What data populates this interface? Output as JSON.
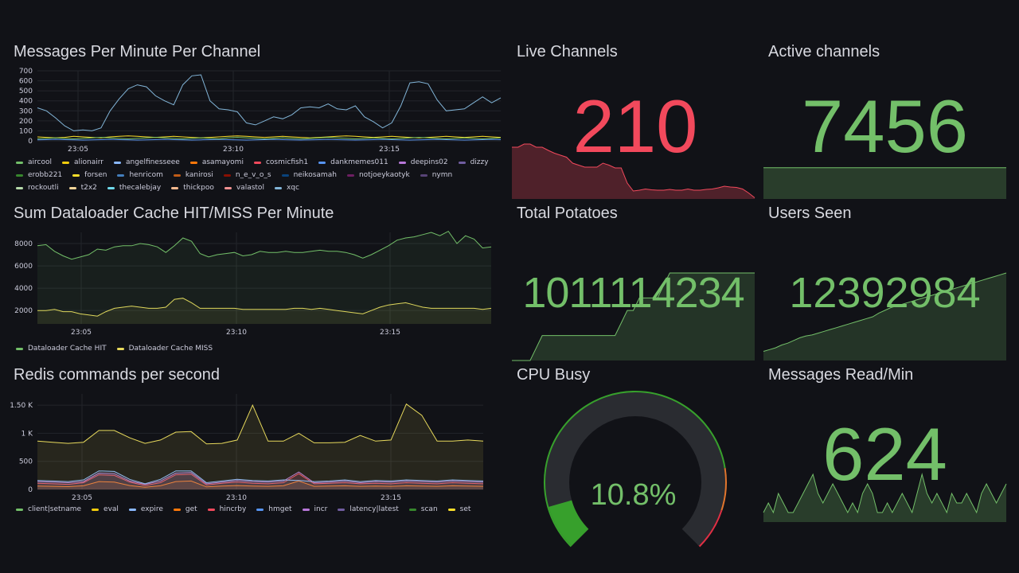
{
  "colors": {
    "background": "#111217",
    "green": "#73bf69",
    "red": "#f2495c",
    "yellow": "#e8da5c",
    "blue": "#8ab8ff",
    "grid": "#23252b"
  },
  "panels": {
    "messages": {
      "title": "Messages Per Minute Per Channel",
      "legend": [
        {
          "name": "aircool",
          "color": "#73bf69"
        },
        {
          "name": "alionairr",
          "color": "#f2cc0c"
        },
        {
          "name": "angelfinesseee",
          "color": "#8ab8ff"
        },
        {
          "name": "asamayomi",
          "color": "#ff780a"
        },
        {
          "name": "cosmicfish1",
          "color": "#f2495c"
        },
        {
          "name": "dankmemes011",
          "color": "#5794f2"
        },
        {
          "name": "deepins02",
          "color": "#b877d9"
        },
        {
          "name": "dizzy",
          "color": "#705da0"
        },
        {
          "name": "erobb221",
          "color": "#37872d"
        },
        {
          "name": "forsen",
          "color": "#fade2a"
        },
        {
          "name": "henricom",
          "color": "#447ebc"
        },
        {
          "name": "kanirosi",
          "color": "#c15c17"
        },
        {
          "name": "n_e_v_o_s",
          "color": "#890f02"
        },
        {
          "name": "neikosamah",
          "color": "#0a437c"
        },
        {
          "name": "notjoeykaotyk",
          "color": "#6d1f62"
        },
        {
          "name": "nymn",
          "color": "#584477"
        },
        {
          "name": "rockoutli",
          "color": "#b7dbab"
        },
        {
          "name": "t2x2",
          "color": "#f4d598"
        },
        {
          "name": "thecalebjay",
          "color": "#70dbed"
        },
        {
          "name": "thickpoo",
          "color": "#f9ba8f"
        },
        {
          "name": "valastol",
          "color": "#f29191"
        },
        {
          "name": "xqc",
          "color": "#82b5d8"
        }
      ]
    },
    "dataloader": {
      "title": "Sum Dataloader Cache HIT/MISS Per Minute",
      "legend": [
        {
          "name": "Dataloader Cache HIT",
          "color": "#73bf69"
        },
        {
          "name": "Dataloader Cache MISS",
          "color": "#e8da5c"
        }
      ]
    },
    "redis": {
      "title": "Redis commands per second",
      "legend": [
        {
          "name": "client|setname",
          "color": "#73bf69"
        },
        {
          "name": "eval",
          "color": "#f2cc0c"
        },
        {
          "name": "expire",
          "color": "#8ab8ff"
        },
        {
          "name": "get",
          "color": "#ff780a"
        },
        {
          "name": "hincrby",
          "color": "#f2495c"
        },
        {
          "name": "hmget",
          "color": "#5794f2"
        },
        {
          "name": "incr",
          "color": "#b877d9"
        },
        {
          "name": "latency|latest",
          "color": "#705da0"
        },
        {
          "name": "scan",
          "color": "#37872d"
        },
        {
          "name": "set",
          "color": "#fade2a"
        }
      ]
    },
    "live_channels": {
      "title": "Live Channels",
      "value": "210",
      "color": "#f2495c"
    },
    "active_channels": {
      "title": "Active channels",
      "value": "7456",
      "color": "#73bf69"
    },
    "total_potatoes": {
      "title": "Total Potatoes",
      "value": "1011114234",
      "color": "#73bf69"
    },
    "users_seen": {
      "title": "Users Seen",
      "value": "12392984",
      "color": "#73bf69"
    },
    "cpu_busy": {
      "title": "CPU Busy",
      "value": "10.8%",
      "percent": 10.8,
      "color": "#73bf69"
    },
    "messages_read": {
      "title": "Messages Read/Min",
      "value": "624",
      "color": "#73bf69"
    }
  },
  "chart_data": [
    {
      "type": "line",
      "title": "Messages Per Minute Per Channel",
      "xticks": [
        "23:05",
        "23:10",
        "23:15"
      ],
      "yticks": [
        "700",
        "600",
        "500",
        "400",
        "300",
        "200",
        "100",
        "0"
      ],
      "ylim": [
        0,
        700
      ],
      "series": [
        {
          "name": "xqc",
          "color": "#82b5d8",
          "values": [
            330,
            300,
            230,
            150,
            100,
            110,
            100,
            130,
            300,
            420,
            520,
            560,
            540,
            450,
            400,
            360,
            560,
            650,
            660,
            400,
            320,
            310,
            290,
            180,
            160,
            200,
            240,
            220,
            260,
            330,
            340,
            330,
            370,
            320,
            310,
            350,
            240,
            190,
            130,
            180,
            350,
            580,
            590,
            570,
            410,
            300,
            310,
            320,
            380,
            440,
            380,
            430
          ]
        },
        {
          "name": "aircool",
          "color": "#73bf69",
          "values": [
            20,
            25,
            30,
            25,
            20,
            25,
            30,
            35,
            30,
            25,
            20,
            25,
            30,
            35,
            30,
            25,
            20,
            25,
            30,
            25,
            20,
            30,
            35,
            30,
            25,
            20,
            25,
            30,
            25,
            20,
            25,
            30,
            35,
            30,
            25,
            20,
            25,
            30,
            25,
            20,
            25,
            30,
            35,
            30,
            25,
            20,
            25,
            30,
            25,
            20,
            25,
            30
          ]
        },
        {
          "name": "forsen",
          "color": "#fade2a",
          "values": [
            40,
            35,
            30,
            35,
            45,
            40,
            35,
            30,
            40,
            45,
            50,
            45,
            40,
            35,
            40,
            45,
            40,
            35,
            30,
            35,
            40,
            45,
            50,
            45,
            40,
            35,
            40,
            45,
            40,
            35,
            30,
            35,
            40,
            45,
            50,
            45,
            40,
            35,
            40,
            45,
            40,
            35,
            30,
            35,
            40,
            45,
            40,
            35,
            40,
            45,
            40,
            35
          ]
        },
        {
          "name": "dankmemes011",
          "color": "#5794f2",
          "values": [
            10,
            12,
            15,
            12,
            10,
            8,
            10,
            12,
            15,
            12,
            10,
            8,
            10,
            12,
            15,
            12,
            10,
            8,
            10,
            12,
            15,
            12,
            10,
            8,
            10,
            12,
            15,
            12,
            10,
            8,
            10,
            12,
            15,
            12,
            10,
            8,
            10,
            12,
            15,
            12,
            10,
            8,
            10,
            12,
            15,
            12,
            10,
            8,
            10,
            12,
            15,
            12
          ]
        }
      ]
    },
    {
      "type": "area",
      "title": "Sum Dataloader Cache HIT/MISS Per Minute",
      "xticks": [
        "23:05",
        "23:10",
        "23:15"
      ],
      "yticks": [
        "8000",
        "6000",
        "4000",
        "2000"
      ],
      "ylim": [
        800,
        9000
      ],
      "series": [
        {
          "name": "Dataloader Cache HIT",
          "color": "#73bf69",
          "values": [
            7800,
            7900,
            7300,
            6900,
            6600,
            6800,
            7000,
            7500,
            7400,
            7700,
            7800,
            7800,
            8000,
            7900,
            7700,
            7200,
            7800,
            8500,
            8200,
            7100,
            6800,
            7000,
            7100,
            7200,
            6900,
            7000,
            7300,
            7200,
            7200,
            7300,
            7200,
            7200,
            7300,
            7400,
            7300,
            7300,
            7200,
            7000,
            6700,
            7000,
            7400,
            7800,
            8300,
            8500,
            8600,
            8800,
            9000,
            8700,
            9100,
            8000,
            8700,
            8400,
            7600,
            7700
          ]
        },
        {
          "name": "Dataloader Cache MISS",
          "color": "#e8da5c",
          "values": [
            2000,
            2000,
            2100,
            1900,
            1900,
            1700,
            1600,
            1500,
            1900,
            2200,
            2300,
            2400,
            2300,
            2200,
            2200,
            2300,
            3000,
            3100,
            2700,
            2200,
            2200,
            2200,
            2200,
            2200,
            2100,
            2100,
            2100,
            2100,
            2100,
            2100,
            2200,
            2200,
            2100,
            2200,
            2100,
            2000,
            1900,
            1800,
            1700,
            2000,
            2300,
            2500,
            2600,
            2700,
            2500,
            2300,
            2200,
            2200,
            2200,
            2200,
            2200,
            2200,
            2100,
            2200
          ]
        }
      ]
    },
    {
      "type": "area",
      "title": "Redis commands per second",
      "xticks": [
        "23:05",
        "23:10",
        "23:15"
      ],
      "yticks": [
        "1.50 K",
        "1 K",
        "500",
        "0"
      ],
      "ylim": [
        0,
        1700
      ],
      "series": [
        {
          "name": "scan",
          "color": "#e8da5c",
          "values": [
            860,
            840,
            820,
            840,
            1050,
            1050,
            920,
            820,
            880,
            1020,
            1030,
            810,
            820,
            880,
            1500,
            860,
            860,
            1000,
            830,
            830,
            840,
            960,
            860,
            880,
            1520,
            1320,
            860,
            860,
            880,
            860
          ]
        },
        {
          "name": "expire",
          "color": "#8ab8ff",
          "values": [
            160,
            150,
            140,
            170,
            330,
            320,
            180,
            100,
            180,
            330,
            330,
            120,
            150,
            180,
            160,
            150,
            170,
            160,
            140,
            150,
            170,
            140,
            160,
            150,
            170,
            160,
            150,
            170,
            160,
            150
          ]
        },
        {
          "name": "incr",
          "color": "#b877d9",
          "values": [
            140,
            130,
            120,
            140,
            290,
            280,
            150,
            90,
            150,
            290,
            300,
            100,
            130,
            160,
            140,
            130,
            150,
            310,
            120,
            130,
            150,
            120,
            140,
            130,
            150,
            140,
            130,
            150,
            140,
            130
          ]
        },
        {
          "name": "hincrby",
          "color": "#f2495c",
          "values": [
            110,
            100,
            90,
            120,
            260,
            250,
            130,
            70,
            120,
            260,
            270,
            80,
            110,
            130,
            110,
            100,
            120,
            280,
            100,
            110,
            120,
            100,
            110,
            100,
            120,
            110,
            100,
            120,
            110,
            100
          ]
        },
        {
          "name": "get",
          "color": "#ff780a",
          "values": [
            60,
            55,
            50,
            65,
            140,
            130,
            70,
            40,
            65,
            140,
            150,
            45,
            60,
            70,
            60,
            55,
            65,
            150,
            55,
            60,
            65,
            55,
            60,
            55,
            65,
            60,
            55,
            65,
            60,
            55
          ]
        }
      ]
    },
    {
      "type": "area",
      "title": "Live Channels",
      "values": [
        190,
        190,
        198,
        198,
        190,
        190,
        182,
        175,
        170,
        165,
        150,
        145,
        140,
        140,
        140,
        150,
        145,
        138,
        138,
        100,
        80,
        82,
        85,
        83,
        82,
        82,
        84,
        82,
        82,
        85,
        82,
        82,
        84,
        85,
        88,
        92,
        90,
        89,
        85,
        75,
        63
      ]
    },
    {
      "type": "area",
      "title": "Active channels",
      "values": [
        7456,
        7456,
        7456,
        7456,
        7456,
        7456,
        7456,
        7456,
        7456,
        7456
      ]
    },
    {
      "type": "area",
      "title": "Total Potatoes",
      "values": [
        100,
        100,
        100,
        100,
        101,
        102,
        102,
        102,
        102,
        102,
        102,
        102,
        102,
        102,
        102,
        102,
        102,
        102,
        103,
        104,
        104,
        105,
        105,
        105,
        105,
        106,
        107,
        107,
        107,
        107,
        107,
        107,
        107,
        107,
        107,
        107,
        107,
        107,
        107,
        107,
        107
      ]
    },
    {
      "type": "area",
      "title": "Users Seen",
      "values": [
        10,
        12,
        14,
        17,
        19,
        22,
        25,
        27,
        28,
        30,
        32,
        34,
        36,
        38,
        40,
        42,
        44,
        46,
        48,
        52,
        55,
        58,
        60,
        62,
        64,
        66,
        68,
        70,
        72,
        74,
        76,
        78,
        80,
        82,
        84,
        86,
        88,
        90,
        92,
        94,
        96
      ]
    },
    {
      "type": "area",
      "title": "Messages Read/Min",
      "values": [
        1,
        2,
        1,
        3,
        2,
        1,
        1,
        2,
        3,
        4,
        5,
        3,
        2,
        3,
        4,
        3,
        2,
        1,
        2,
        1,
        3,
        4,
        3,
        1,
        1,
        2,
        1,
        2,
        3,
        2,
        1,
        3,
        5,
        3,
        2,
        3,
        2,
        1,
        3,
        2,
        2,
        3,
        2,
        1,
        3,
        4,
        3,
        2,
        3,
        4
      ]
    }
  ]
}
